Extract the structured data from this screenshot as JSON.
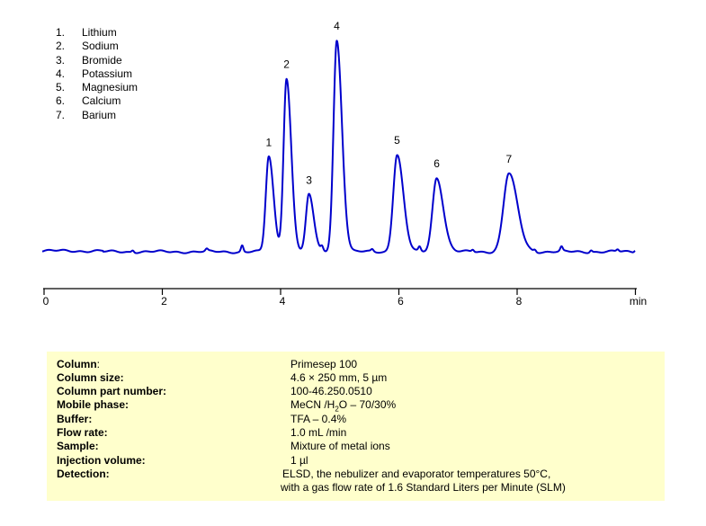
{
  "chart_data": {
    "type": "line",
    "title": "",
    "xlabel": "min",
    "ylabel": "",
    "xlim": [
      0,
      10
    ],
    "x_ticks": [
      0,
      2,
      4,
      6,
      8
    ],
    "x_tick_labels": [
      "0",
      "2",
      "4",
      "6",
      "8",
      "min"
    ],
    "grid": false,
    "line_color": "#0000cc",
    "legend_position": "top-left",
    "legend": [
      {
        "num": "1.",
        "name": "Lithium"
      },
      {
        "num": "2.",
        "name": "Sodium"
      },
      {
        "num": "3.",
        "name": "Bromide"
      },
      {
        "num": "4.",
        "name": "Potassium"
      },
      {
        "num": "5.",
        "name": "Magnesium"
      },
      {
        "num": "6.",
        "name": "Calcium"
      },
      {
        "num": "7.",
        "name": "Barium"
      }
    ],
    "peaks": [
      {
        "label": "1",
        "compound": "Lithium",
        "rt": 3.8,
        "relative_height": 0.45,
        "width": 0.05
      },
      {
        "label": "2",
        "compound": "Sodium",
        "rt": 4.1,
        "relative_height": 0.82,
        "width": 0.05
      },
      {
        "label": "3",
        "compound": "Bromide",
        "rt": 4.48,
        "relative_height": 0.27,
        "width": 0.05
      },
      {
        "label": "4",
        "compound": "Potassium",
        "rt": 4.95,
        "relative_height": 1.0,
        "width": 0.055
      },
      {
        "label": "5",
        "compound": "Magnesium",
        "rt": 5.97,
        "relative_height": 0.46,
        "width": 0.065
      },
      {
        "label": "6",
        "compound": "Calcium",
        "rt": 6.64,
        "relative_height": 0.35,
        "width": 0.07
      },
      {
        "label": "7",
        "compound": "Barium",
        "rt": 7.86,
        "relative_height": 0.37,
        "width": 0.09
      }
    ],
    "minor_bumps": [
      {
        "rt": 1.5,
        "relative_height": 0.01
      },
      {
        "rt": 2.75,
        "relative_height": 0.01
      },
      {
        "rt": 3.35,
        "relative_height": 0.03
      },
      {
        "rt": 4.7,
        "relative_height": 0.02
      },
      {
        "rt": 5.55,
        "relative_height": 0.01
      },
      {
        "rt": 6.35,
        "relative_height": 0.02
      },
      {
        "rt": 7.25,
        "relative_height": 0.01
      },
      {
        "rt": 8.3,
        "relative_height": 0.01
      },
      {
        "rt": 8.75,
        "relative_height": 0.02
      },
      {
        "rt": 9.25,
        "relative_height": 0.01
      },
      {
        "rt": 9.7,
        "relative_height": 0.01
      },
      {
        "rt": 10.0,
        "relative_height": 0.01
      }
    ]
  },
  "conditions": [
    {
      "label": "Column",
      "colon": ":",
      "bold": true,
      "value": "Primesep  100"
    },
    {
      "label": "Column size:",
      "colon": "",
      "bold": true,
      "value": "4.6 × 250 mm, 5 µm"
    },
    {
      "label": "Column part number:",
      "colon": "",
      "bold": true,
      "value": "100-46.250.0510"
    },
    {
      "label": "Mobile phase:",
      "colon": "",
      "bold": true,
      "value_pre": "MeCN /H",
      "value_sub": "2",
      "value_post": "O – 70/30%"
    },
    {
      "label": "Buffer:",
      "colon": "",
      "bold": true,
      "value": "TFA – 0.4%"
    },
    {
      "label": "Flow rate:",
      "colon": "",
      "bold": true,
      "value": "1.0 mL /min"
    },
    {
      "label": "Sample:",
      "colon": "",
      "bold": true,
      "value": "Mixture of metal ions"
    },
    {
      "label": "Injection volume:",
      "colon": "",
      "bold": true,
      "value": "1 µl"
    },
    {
      "label": "Detection:",
      "colon": "",
      "bold": true,
      "value": "ELSD, the nebulizer and evaporator temperatures 50°C,",
      "value2": "with a gas flow rate of 1.6 Standard Liters per Minute (SLM)"
    }
  ]
}
